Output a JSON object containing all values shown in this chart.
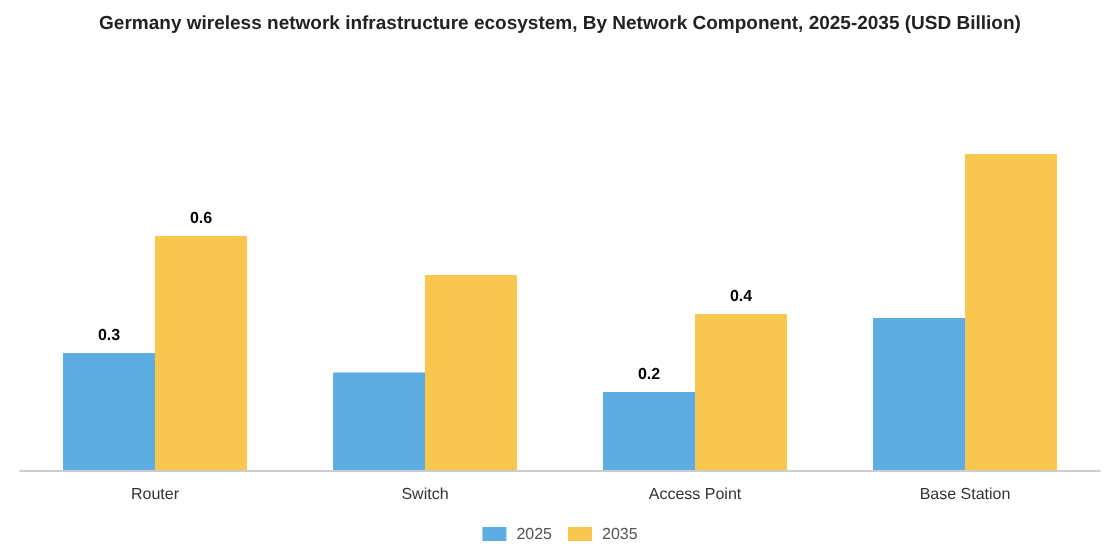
{
  "chart_data": {
    "type": "bar",
    "title": "Germany wireless network infrastructure ecosystem, By Network Component, 2025-2035 (USD Billion)",
    "categories": [
      "Router",
      "Switch",
      "Access Point",
      "Base Station"
    ],
    "series": [
      {
        "name": "2025",
        "color": "#5dade2",
        "values": [
          0.3,
          0.25,
          0.2,
          0.39
        ],
        "value_labels": [
          "0.3",
          null,
          "0.2",
          null
        ]
      },
      {
        "name": "2035",
        "color": "#f9c74f",
        "values": [
          0.6,
          0.5,
          0.4,
          0.81
        ],
        "value_labels": [
          "0.6",
          null,
          "0.4",
          null
        ]
      }
    ],
    "legend": "bottom"
  }
}
